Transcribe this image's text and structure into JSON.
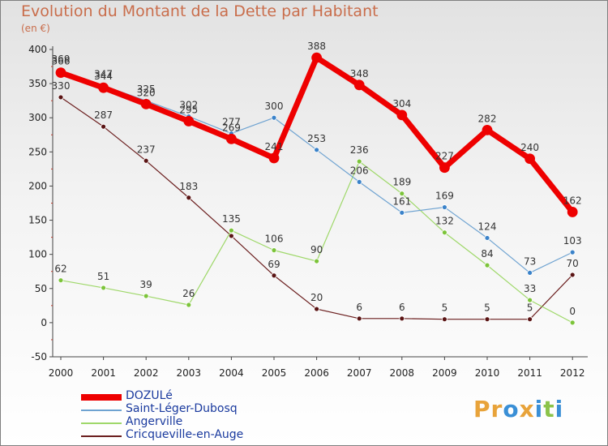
{
  "header": {
    "title": "Evolution du Montant de la Dette par Habitant",
    "unit": "(en €)"
  },
  "logo": {
    "text": "Proxiti",
    "letters": [
      {
        "ch": "P",
        "color": "#e8a33a"
      },
      {
        "ch": "r",
        "color": "#e8a33a"
      },
      {
        "ch": "o",
        "color": "#3a8fd6"
      },
      {
        "ch": "x",
        "color": "#e8a33a"
      },
      {
        "ch": "i",
        "color": "#3a8fd6"
      },
      {
        "ch": "t",
        "color": "#8bc34a"
      },
      {
        "ch": "i",
        "color": "#3a8fd6"
      }
    ]
  },
  "chart_data": {
    "type": "line",
    "x": [
      "2000",
      "2001",
      "2002",
      "2003",
      "2004",
      "2005",
      "2006",
      "2007",
      "2008",
      "2009",
      "2010",
      "2011",
      "2012"
    ],
    "ylim": [
      -50,
      400
    ],
    "yticks": [
      -50,
      0,
      50,
      100,
      150,
      200,
      250,
      300,
      350,
      400
    ],
    "grid": false,
    "legend_position": "bottom-left",
    "series": [
      {
        "name": "Cricqueville-en-Auge",
        "color": "#6b1e1e",
        "marker": "#5a1414",
        "width": 1.2,
        "values": [
          330,
          287,
          237,
          183,
          127,
          69,
          20,
          6,
          6,
          5,
          5,
          5,
          70
        ],
        "labels": [
          "330",
          "287",
          "237",
          "183",
          "",
          "69",
          "20",
          "6",
          "6",
          "5",
          "5",
          "5",
          "70"
        ]
      },
      {
        "name": "Angerville",
        "color": "#9fd86a",
        "marker": "#7cc43a",
        "width": 1.2,
        "values": [
          62,
          51,
          39,
          26,
          135,
          106,
          90,
          236,
          189,
          132,
          84,
          33,
          0
        ],
        "labels": [
          "62",
          "51",
          "39",
          "26",
          "135",
          "106",
          "90",
          "236",
          "189",
          "132",
          "84",
          "33",
          "0"
        ]
      },
      {
        "name": "Saint-Léger-Dubosq",
        "color": "#6fa3d1",
        "marker": "#3a82c9",
        "width": 1.2,
        "values": [
          369,
          347,
          325,
          302,
          277,
          300,
          253,
          206,
          161,
          169,
          124,
          73,
          103
        ],
        "labels": [
          "369",
          "347",
          "325",
          "302",
          "277",
          "300",
          "253",
          "206",
          "161",
          "169",
          "124",
          "73",
          "103"
        ]
      },
      {
        "name": "DOZULé",
        "color": "#ee0000",
        "marker": "#ee0000",
        "width": 7,
        "values": [
          366,
          344,
          320,
          295,
          269,
          241,
          388,
          348,
          304,
          227,
          282,
          240,
          162
        ],
        "labels": [
          "366",
          "344",
          "320",
          "295",
          "269",
          "241",
          "388",
          "348",
          "304",
          "227",
          "282",
          "240",
          "162"
        ]
      }
    ],
    "legend_order": [
      "DOZULé",
      "Saint-Léger-Dubosq",
      "Angerville",
      "Cricqueville-en-Auge"
    ]
  }
}
